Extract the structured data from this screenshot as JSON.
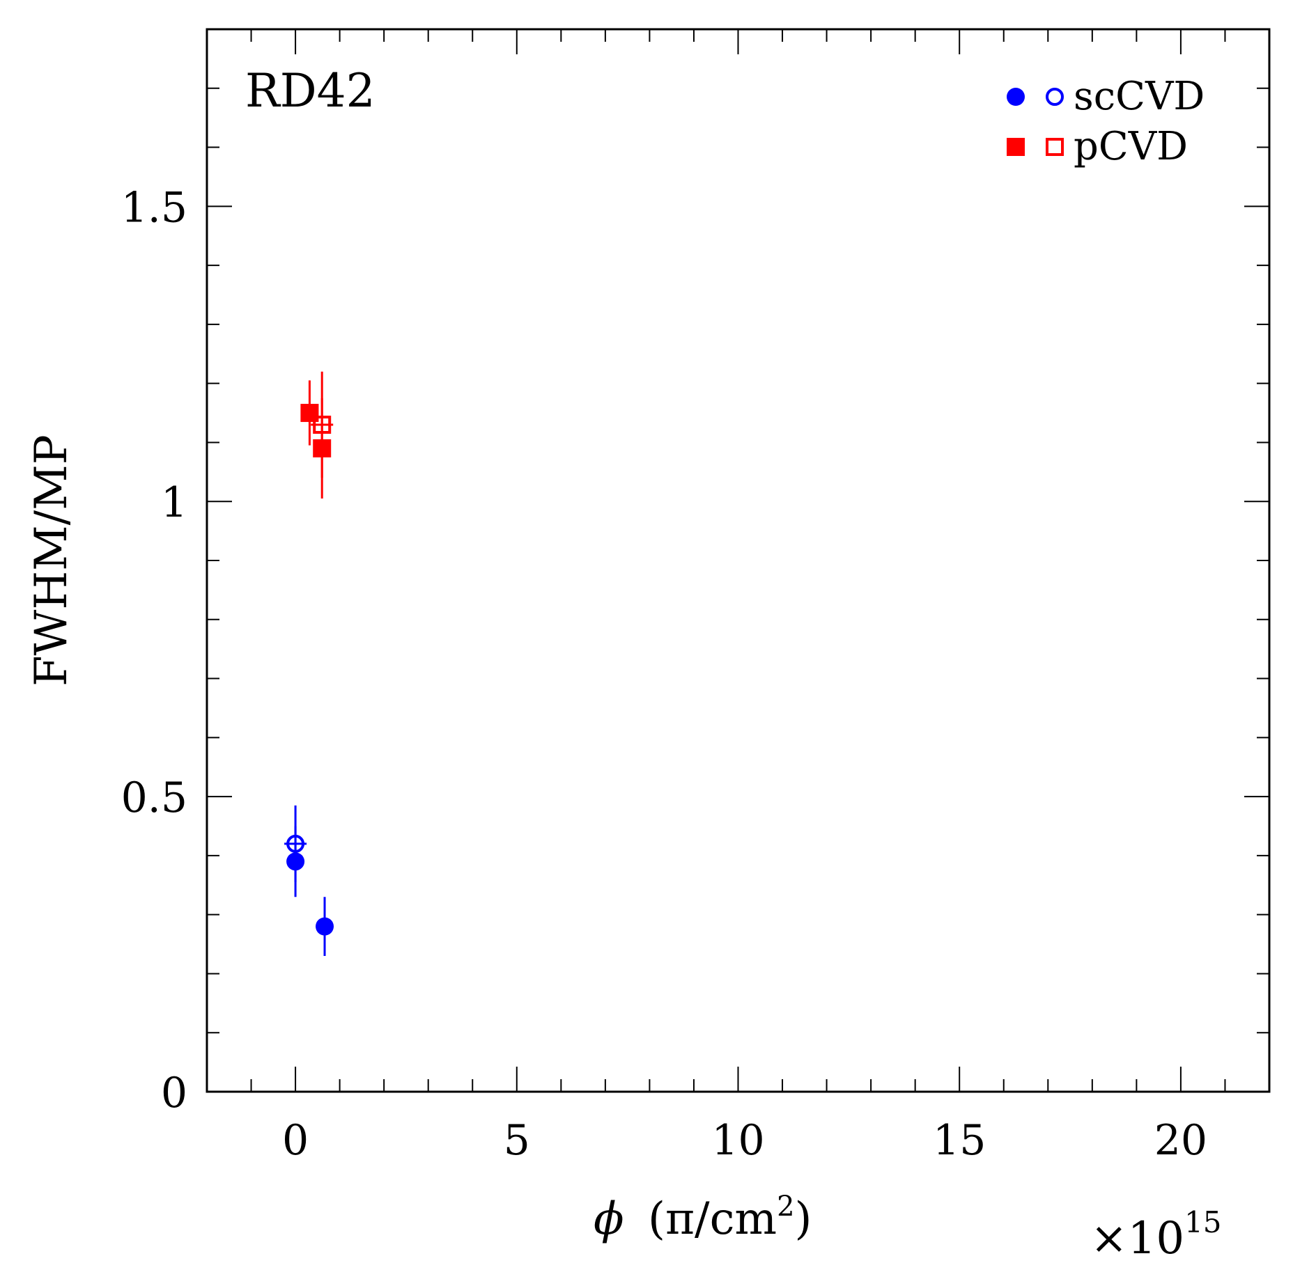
{
  "chart_data": {
    "type": "scatter",
    "title": "",
    "annotation": "RD42",
    "xlabel_symbol": "ϕ",
    "xlabel_units": "(π/cm²)",
    "xlabel_unit_base": "π/cm",
    "xlabel_unit_exp": "2",
    "x_multiplier_base": "×10",
    "x_multiplier_exp": "15",
    "ylabel": "FWHM/MP",
    "xlim": [
      -2,
      22
    ],
    "ylim": [
      0,
      1.8
    ],
    "x_ticks": [
      0,
      5,
      10,
      15,
      20
    ],
    "x_tick_labels": [
      "0",
      "5",
      "10",
      "15",
      "20"
    ],
    "y_ticks": [
      0,
      0.5,
      1,
      1.5
    ],
    "y_tick_labels": [
      "0",
      "0.5",
      "1",
      "1.5"
    ],
    "legend_position": "top-right",
    "legend": [
      {
        "label": "scCVD",
        "color": "#0000ff",
        "markers": [
          "filled-circle",
          "open-circle"
        ]
      },
      {
        "label": "pCVD",
        "color": "#ff0000",
        "markers": [
          "filled-square",
          "open-square"
        ]
      }
    ],
    "series": [
      {
        "name": "scCVD filled",
        "color": "#0000ff",
        "marker": "filled-circle",
        "points": [
          {
            "x": 0.0,
            "y": 0.39,
            "yerr": 0.06
          },
          {
            "x": 0.66,
            "y": 0.28,
            "yerr": 0.05
          }
        ]
      },
      {
        "name": "scCVD open",
        "color": "#0000ff",
        "marker": "open-circle",
        "points": [
          {
            "x": 0.0,
            "y": 0.42,
            "yerr": 0.065
          }
        ]
      },
      {
        "name": "pCVD filled",
        "color": "#ff0000",
        "marker": "filled-square",
        "points": [
          {
            "x": 0.32,
            "y": 1.15,
            "yerr": 0.055
          },
          {
            "x": 0.6,
            "y": 1.09,
            "yerr": 0.085
          }
        ]
      },
      {
        "name": "pCVD open",
        "color": "#ff0000",
        "marker": "open-square",
        "points": [
          {
            "x": 0.6,
            "y": 1.13,
            "yerr": 0.09
          }
        ]
      }
    ]
  }
}
